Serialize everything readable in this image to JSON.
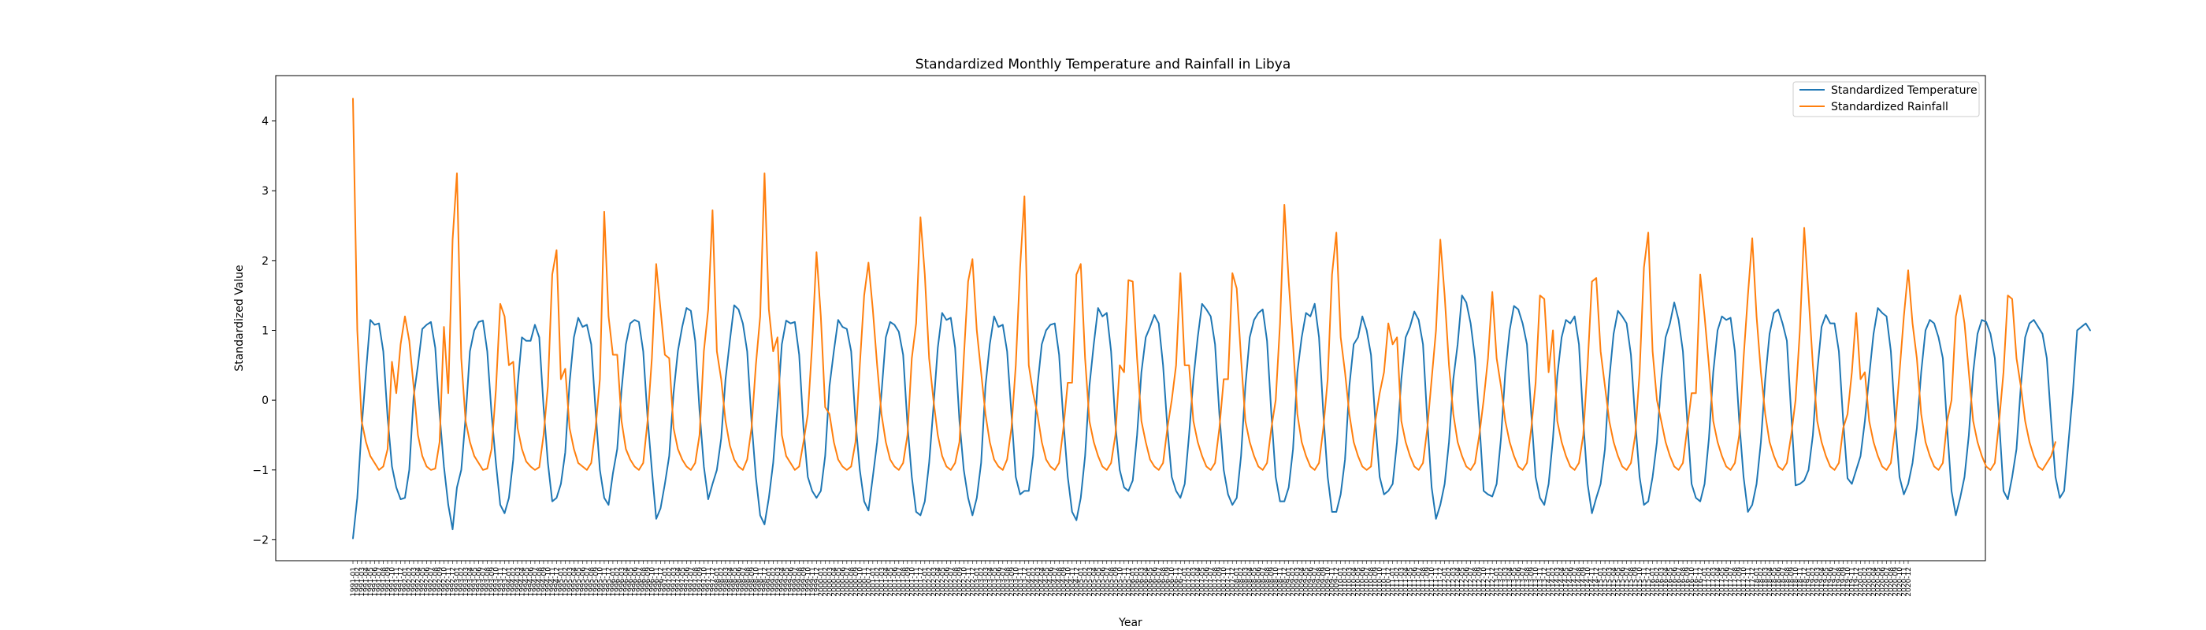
{
  "chart_data": {
    "type": "line",
    "title": "Standardized Monthly Temperature and Rainfall in Libya",
    "xlabel": "Year",
    "ylabel": "Standardized Value",
    "ylim": [
      -2.3,
      4.65
    ],
    "yticks": [
      -2,
      -1,
      0,
      1,
      2,
      3,
      4
    ],
    "x_start": "1991-01",
    "x_end": "2020-12",
    "x_tick_format": "YYYY-MM",
    "grid": false,
    "legend_position": "top-right",
    "series": [
      {
        "name": "Standardized Temperature",
        "color": "#1f77b4",
        "values": [
          -1.98,
          -1.4,
          -0.4,
          0.4,
          1.15,
          1.08,
          1.1,
          0.7,
          -0.25,
          -0.95,
          -1.25,
          -1.42,
          -1.4,
          -1.0,
          0.05,
          0.5,
          1.02,
          1.08,
          1.12,
          0.75,
          -0.2,
          -0.95,
          -1.5,
          -1.85,
          -1.25,
          -1.0,
          -0.25,
          0.7,
          1.0,
          1.12,
          1.14,
          0.7,
          -0.2,
          -0.9,
          -1.5,
          -1.62,
          -1.4,
          -0.85,
          0.2,
          0.9,
          0.85,
          0.85,
          1.08,
          0.9,
          -0.1,
          -0.9,
          -1.45,
          -1.4,
          -1.2,
          -0.75,
          0.25,
          0.9,
          1.18,
          1.05,
          1.08,
          0.8,
          -0.15,
          -1.0,
          -1.4,
          -1.5,
          -1.05,
          -0.7,
          0.15,
          0.8,
          1.1,
          1.15,
          1.12,
          0.7,
          -0.25,
          -1.0,
          -1.7,
          -1.55,
          -1.2,
          -0.8,
          0.1,
          0.7,
          1.05,
          1.32,
          1.28,
          0.85,
          -0.15,
          -0.95,
          -1.42,
          -1.2,
          -1.0,
          -0.55,
          0.3,
          0.85,
          1.36,
          1.3,
          1.1,
          0.7,
          -0.3,
          -1.1,
          -1.65,
          -1.78,
          -1.4,
          -0.9,
          -0.1,
          0.8,
          1.14,
          1.1,
          1.12,
          0.65,
          -0.4,
          -1.1,
          -1.3,
          -1.4,
          -1.3,
          -0.8,
          0.2,
          0.7,
          1.15,
          1.05,
          1.02,
          0.7,
          -0.3,
          -1.0,
          -1.45,
          -1.58,
          -1.1,
          -0.6,
          0.1,
          0.9,
          1.12,
          1.08,
          0.98,
          0.65,
          -0.35,
          -1.1,
          -1.6,
          -1.65,
          -1.45,
          -0.9,
          -0.1,
          0.75,
          1.25,
          1.15,
          1.18,
          0.75,
          -0.3,
          -1.0,
          -1.4,
          -1.65,
          -1.4,
          -0.9,
          0.2,
          0.8,
          1.2,
          1.05,
          1.08,
          0.7,
          -0.2,
          -1.1,
          -1.35,
          -1.3,
          -1.3,
          -0.8,
          0.2,
          0.8,
          1.0,
          1.08,
          1.1,
          0.65,
          -0.3,
          -1.1,
          -1.6,
          -1.72,
          -1.4,
          -0.8,
          0.2,
          0.8,
          1.32,
          1.2,
          1.25,
          0.7,
          -0.35,
          -1.0,
          -1.25,
          -1.3,
          -1.15,
          -0.5,
          0.4,
          0.9,
          1.05,
          1.22,
          1.1,
          0.5,
          -0.4,
          -1.1,
          -1.3,
          -1.4,
          -1.2,
          -0.5,
          0.3,
          0.9,
          1.38,
          1.3,
          1.2,
          0.8,
          -0.2,
          -1.0,
          -1.35,
          -1.5,
          -1.4,
          -0.8,
          0.2,
          0.9,
          1.15,
          1.25,
          1.3,
          0.85,
          -0.2,
          -1.1,
          -1.45,
          -1.45,
          -1.25,
          -0.7,
          0.4,
          0.9,
          1.25,
          1.2,
          1.38,
          0.9,
          -0.2,
          -1.1,
          -1.6,
          -1.6,
          -1.35,
          -0.85,
          0.2,
          0.8,
          0.9,
          1.2,
          1.0,
          0.65,
          -0.3,
          -1.1,
          -1.35,
          -1.3,
          -1.2,
          -0.6,
          0.3,
          0.9,
          1.05,
          1.27,
          1.15,
          0.8,
          -0.3,
          -1.25,
          -1.7,
          -1.5,
          -1.2,
          -0.6,
          0.3,
          0.8,
          1.5,
          1.4,
          1.1,
          0.6,
          -0.3,
          -1.3,
          -1.35,
          -1.38,
          -1.2,
          -0.55,
          0.4,
          1.0,
          1.35,
          1.3,
          1.1,
          0.8,
          -0.2,
          -1.1,
          -1.4,
          -1.5,
          -1.2,
          -0.55,
          0.35,
          0.9,
          1.15,
          1.1,
          1.2,
          0.8,
          -0.3,
          -1.2,
          -1.62,
          -1.4,
          -1.2,
          -0.7,
          0.3,
          0.95,
          1.28,
          1.2,
          1.1,
          0.65,
          -0.3,
          -1.1,
          -1.5,
          -1.45,
          -1.1,
          -0.6,
          0.3,
          0.9,
          1.1,
          1.4,
          1.15,
          0.7,
          -0.3,
          -1.2,
          -1.4,
          -1.45,
          -1.2,
          -0.55,
          0.4,
          1.0,
          1.2,
          1.15,
          1.18,
          0.7,
          -0.3,
          -1.1,
          -1.6,
          -1.5,
          -1.2,
          -0.6,
          0.3,
          0.95,
          1.25,
          1.3,
          1.1,
          0.85,
          -0.2,
          -1.22,
          -1.2,
          -1.15,
          -1.0,
          -0.5,
          0.4,
          1.05,
          1.22,
          1.1,
          1.1,
          0.7,
          -0.3,
          -1.12,
          -1.2,
          -1.0,
          -0.8,
          -0.3,
          0.35,
          0.95,
          1.32,
          1.25,
          1.2,
          0.7,
          -0.3,
          -1.1,
          -1.35,
          -1.2,
          -0.9,
          -0.4,
          0.4,
          1.0,
          1.15,
          1.1,
          0.9,
          0.6,
          -0.4,
          -1.3,
          -1.65,
          -1.4,
          -1.1,
          -0.5,
          0.4,
          0.95,
          1.15,
          1.12,
          0.95,
          0.6,
          -0.3,
          -1.3,
          -1.42,
          -1.1,
          -0.7,
          0.2,
          0.9,
          1.1,
          1.15,
          1.05,
          0.95,
          0.6,
          -0.3,
          -1.1,
          -1.4,
          -1.3,
          -0.6,
          0.1,
          1.0,
          1.05,
          1.1,
          1.0
        ]
      },
      {
        "name": "Standardized Rainfall",
        "color": "#ff7f0e",
        "values": [
          4.32,
          1.0,
          -0.3,
          -0.6,
          -0.8,
          -0.9,
          -1.0,
          -0.95,
          -0.7,
          0.55,
          0.1,
          0.8,
          1.2,
          0.85,
          0.2,
          -0.5,
          -0.8,
          -0.95,
          -1.0,
          -0.98,
          -0.6,
          1.05,
          0.1,
          2.3,
          3.25,
          0.6,
          -0.3,
          -0.6,
          -0.8,
          -0.9,
          -1.0,
          -0.98,
          -0.7,
          0.15,
          1.38,
          1.2,
          0.5,
          0.55,
          -0.4,
          -0.7,
          -0.88,
          -0.95,
          -1.0,
          -0.96,
          -0.5,
          0.2,
          1.8,
          2.15,
          0.3,
          0.45,
          -0.4,
          -0.7,
          -0.9,
          -0.95,
          -1.0,
          -0.9,
          -0.4,
          0.3,
          2.7,
          1.2,
          0.65,
          0.65,
          -0.3,
          -0.7,
          -0.85,
          -0.95,
          -1.0,
          -0.9,
          -0.3,
          0.6,
          1.95,
          1.3,
          0.65,
          0.6,
          -0.4,
          -0.7,
          -0.85,
          -0.95,
          -1.0,
          -0.9,
          -0.5,
          0.7,
          1.3,
          2.72,
          0.7,
          0.3,
          -0.3,
          -0.65,
          -0.85,
          -0.95,
          -1.0,
          -0.85,
          -0.4,
          0.5,
          1.2,
          3.25,
          1.3,
          0.7,
          0.9,
          -0.5,
          -0.8,
          -0.9,
          -1.0,
          -0.95,
          -0.6,
          -0.2,
          0.8,
          2.12,
          1.2,
          -0.1,
          -0.2,
          -0.6,
          -0.85,
          -0.95,
          -1.0,
          -0.95,
          -0.6,
          0.5,
          1.5,
          1.97,
          1.3,
          0.5,
          -0.2,
          -0.6,
          -0.85,
          -0.95,
          -1.0,
          -0.9,
          -0.5,
          0.6,
          1.1,
          2.62,
          1.8,
          0.6,
          0.0,
          -0.5,
          -0.8,
          -0.95,
          -1.0,
          -0.9,
          -0.6,
          0.6,
          1.7,
          2.02,
          1.0,
          0.4,
          -0.2,
          -0.6,
          -0.85,
          -0.95,
          -1.0,
          -0.85,
          -0.4,
          0.5,
          1.9,
          2.92,
          0.5,
          0.1,
          -0.2,
          -0.6,
          -0.85,
          -0.95,
          -1.0,
          -0.9,
          -0.4,
          0.25,
          0.25,
          1.8,
          1.95,
          0.6,
          -0.3,
          -0.6,
          -0.8,
          -0.95,
          -1.0,
          -0.9,
          -0.5,
          0.5,
          0.4,
          1.72,
          1.7,
          0.6,
          -0.3,
          -0.6,
          -0.85,
          -0.95,
          -1.0,
          -0.9,
          -0.4,
          0.0,
          0.5,
          1.82,
          0.5,
          0.5,
          -0.3,
          -0.6,
          -0.8,
          -0.95,
          -1.0,
          -0.9,
          -0.4,
          0.3,
          0.3,
          1.82,
          1.6,
          0.6,
          -0.3,
          -0.6,
          -0.8,
          -0.95,
          -1.0,
          -0.9,
          -0.4,
          0.0,
          1.1,
          2.8,
          1.7,
          0.8,
          -0.2,
          -0.6,
          -0.8,
          -0.95,
          -1.0,
          -0.9,
          -0.4,
          0.3,
          1.8,
          2.4,
          0.9,
          0.4,
          -0.2,
          -0.6,
          -0.8,
          -0.95,
          -1.0,
          -0.95,
          -0.3,
          0.1,
          0.4,
          1.1,
          0.8,
          0.9,
          -0.3,
          -0.6,
          -0.8,
          -0.95,
          -1.0,
          -0.9,
          -0.4,
          0.3,
          1.0,
          2.3,
          1.5,
          0.5,
          -0.2,
          -0.6,
          -0.8,
          -0.95,
          -1.0,
          -0.9,
          -0.5,
          0.0,
          0.6,
          1.55,
          0.6,
          0.2,
          -0.3,
          -0.6,
          -0.8,
          -0.95,
          -1.0,
          -0.9,
          -0.4,
          0.25,
          1.5,
          1.45,
          0.4,
          1.0,
          -0.3,
          -0.6,
          -0.8,
          -0.95,
          -1.0,
          -0.9,
          -0.5,
          0.5,
          1.7,
          1.75,
          0.7,
          0.2,
          -0.3,
          -0.6,
          -0.8,
          -0.95,
          -1.0,
          -0.9,
          -0.5,
          0.4,
          1.9,
          2.4,
          0.7,
          0.0,
          -0.3,
          -0.6,
          -0.8,
          -0.95,
          -1.0,
          -0.9,
          -0.4,
          0.1,
          0.1,
          1.8,
          1.2,
          0.5,
          -0.3,
          -0.6,
          -0.8,
          -0.95,
          -1.0,
          -0.9,
          -0.5,
          0.6,
          1.5,
          2.32,
          1.2,
          0.4,
          -0.2,
          -0.6,
          -0.8,
          -0.95,
          -1.0,
          -0.9,
          -0.5,
          0.0,
          1.0,
          2.47,
          1.5,
          0.5,
          -0.3,
          -0.6,
          -0.8,
          -0.95,
          -1.0,
          -0.9,
          -0.4,
          -0.2,
          0.4,
          1.25,
          0.3,
          0.4,
          -0.3,
          -0.6,
          -0.8,
          -0.95,
          -1.0,
          -0.9,
          -0.4,
          0.4,
          1.2,
          1.86,
          1.1,
          0.6,
          -0.2,
          -0.6,
          -0.8,
          -0.95,
          -1.0,
          -0.9,
          -0.3,
          0.0,
          1.2,
          1.5,
          1.1,
          0.4,
          -0.3,
          -0.6,
          -0.8,
          -0.95,
          -1.0,
          -0.9,
          -0.3,
          0.4,
          1.5,
          1.45,
          0.6,
          0.2,
          -0.3,
          -0.6,
          -0.8,
          -0.95,
          -1.0,
          -0.9,
          -0.8,
          -0.6
        ]
      }
    ]
  }
}
